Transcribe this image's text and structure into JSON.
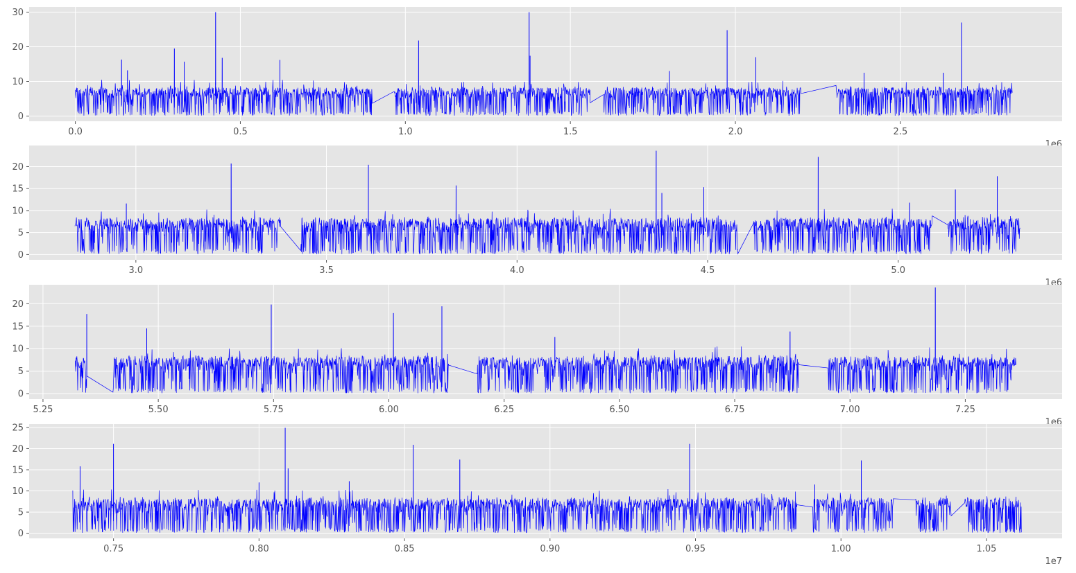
{
  "figure": {
    "background": "#ffffff",
    "plot_background": "#e5e5e5",
    "grid_color": "#ffffff",
    "line_color": "#0000ff",
    "tick_label_color": "#555555"
  },
  "chart_data": [
    {
      "type": "line",
      "title": "",
      "xlabel": "",
      "ylabel": "",
      "grid": true,
      "xlim": [
        -140000,
        2990000
      ],
      "ylim": [
        -1.5,
        31.5
      ],
      "x_ticks": [
        0,
        500000,
        1000000,
        1500000,
        2000000,
        2500000
      ],
      "x_tick_labels": [
        "0.0",
        "0.5",
        "1.0",
        "1.5",
        "2.0",
        "2.5"
      ],
      "y_ticks": [
        0,
        10,
        20,
        30
      ],
      "y_tick_labels": [
        "0",
        "10",
        "20",
        "30"
      ],
      "x_offset_label": "1e6",
      "x_range": [
        0,
        2840000
      ],
      "spikes": [
        {
          "x": 140000,
          "y": 16.3
        },
        {
          "x": 158000,
          "y": 13.2
        },
        {
          "x": 300000,
          "y": 19.5
        },
        {
          "x": 330000,
          "y": 15.7
        },
        {
          "x": 425000,
          "y": 30
        },
        {
          "x": 445000,
          "y": 16.8
        },
        {
          "x": 620000,
          "y": 16.2
        },
        {
          "x": 1040000,
          "y": 21.8
        },
        {
          "x": 1375000,
          "y": 30
        },
        {
          "x": 1378000,
          "y": 17.4
        },
        {
          "x": 1800000,
          "y": 13.0
        },
        {
          "x": 1975000,
          "y": 24.8
        },
        {
          "x": 2062000,
          "y": 17.0
        },
        {
          "x": 2390000,
          "y": 12.5
        },
        {
          "x": 2630000,
          "y": 12.5
        },
        {
          "x": 2685000,
          "y": 27.0
        }
      ],
      "gaps": [
        [
          900000,
          960000
        ],
        [
          1560000,
          1600000
        ],
        [
          2200000,
          2300000
        ]
      ],
      "series": [
        {
          "values_summary": "noisy signal mostly between 0 and 8 with sparse spikes"
        }
      ]
    },
    {
      "type": "line",
      "title": "",
      "xlabel": "",
      "ylabel": "",
      "grid": true,
      "xlim": [
        2720000,
        5430000
      ],
      "ylim": [
        -1.2,
        24.8
      ],
      "x_ticks": [
        3000000,
        3500000,
        4000000,
        4500000,
        5000000
      ],
      "x_tick_labels": [
        "3.0",
        "3.5",
        "4.0",
        "4.5",
        "5.0"
      ],
      "y_ticks": [
        0,
        5,
        10,
        15,
        20
      ],
      "y_tick_labels": [
        "0",
        "5",
        "10",
        "15",
        "20"
      ],
      "x_offset_label": "1e6",
      "x_range": [
        2840000,
        5320000
      ],
      "spikes": [
        {
          "x": 2975000,
          "y": 11.6
        },
        {
          "x": 3250000,
          "y": 20.7
        },
        {
          "x": 3610000,
          "y": 20.4
        },
        {
          "x": 3840000,
          "y": 15.7
        },
        {
          "x": 4365000,
          "y": 23.6
        },
        {
          "x": 4380000,
          "y": 14.0
        },
        {
          "x": 4490000,
          "y": 15.3
        },
        {
          "x": 4790000,
          "y": 22.2
        },
        {
          "x": 5030000,
          "y": 11.8
        },
        {
          "x": 5150000,
          "y": 14.8
        },
        {
          "x": 5260000,
          "y": 17.8
        }
      ],
      "gaps": [
        [
          3380000,
          3430000
        ],
        [
          4580000,
          4620000
        ],
        [
          5090000,
          5130000
        ]
      ],
      "series": [
        {
          "values_summary": "noisy signal mostly between 0 and 8 with sparse spikes"
        }
      ]
    },
    {
      "type": "line",
      "title": "",
      "xlabel": "",
      "ylabel": "",
      "grid": true,
      "xlim": [
        5220000,
        7460000
      ],
      "ylim": [
        -1.2,
        24.2
      ],
      "x_ticks": [
        5250000,
        5500000,
        5750000,
        6000000,
        6250000,
        6500000,
        6750000,
        7000000,
        7250000
      ],
      "x_tick_labels": [
        "5.25",
        "5.50",
        "5.75",
        "6.00",
        "6.25",
        "6.50",
        "6.75",
        "7.00",
        "7.25"
      ],
      "y_ticks": [
        0,
        5,
        10,
        15,
        20
      ],
      "y_tick_labels": [
        "0",
        "5",
        "10",
        "15",
        "20"
      ],
      "x_offset_label": "1e6",
      "x_range": [
        5320000,
        7360000
      ],
      "spikes": [
        {
          "x": 5345000,
          "y": 17.7
        },
        {
          "x": 5475000,
          "y": 14.5
        },
        {
          "x": 5745000,
          "y": 19.8
        },
        {
          "x": 6010000,
          "y": 17.9
        },
        {
          "x": 6115000,
          "y": 19.4
        },
        {
          "x": 6360000,
          "y": 12.6
        },
        {
          "x": 6870000,
          "y": 13.8
        },
        {
          "x": 7185000,
          "y": 23.6
        }
      ],
      "gaps": [
        [
          5345000,
          5400000
        ],
        [
          6130000,
          6190000
        ],
        [
          6890000,
          6950000
        ]
      ],
      "series": [
        {
          "values_summary": "noisy signal mostly between 0 and 8 with sparse spikes"
        }
      ]
    },
    {
      "type": "line",
      "title": "",
      "xlabel": "",
      "ylabel": "",
      "grid": true,
      "xlim": [
        7210000,
        10760000
      ],
      "ylim": [
        -1.2,
        25.8
      ],
      "x_ticks": [
        7500000,
        8000000,
        8500000,
        9000000,
        9500000,
        10000000,
        10500000
      ],
      "x_tick_labels": [
        "0.75",
        "0.80",
        "0.85",
        "0.90",
        "0.95",
        "1.00",
        "1.05"
      ],
      "y_ticks": [
        0,
        5,
        10,
        15,
        20,
        25
      ],
      "y_tick_labels": [
        "0",
        "5",
        "10",
        "15",
        "20",
        "25"
      ],
      "x_offset_label": "1e7",
      "x_range": [
        7360000,
        10620000
      ],
      "spikes": [
        {
          "x": 7385000,
          "y": 15.8
        },
        {
          "x": 7500000,
          "y": 21.1
        },
        {
          "x": 8000000,
          "y": 12.0
        },
        {
          "x": 8090000,
          "y": 24.9
        },
        {
          "x": 8100000,
          "y": 15.3
        },
        {
          "x": 8310000,
          "y": 12.3
        },
        {
          "x": 8530000,
          "y": 20.9
        },
        {
          "x": 8690000,
          "y": 17.4
        },
        {
          "x": 9480000,
          "y": 21.1
        },
        {
          "x": 9910000,
          "y": 11.5
        },
        {
          "x": 10070000,
          "y": 17.2
        }
      ],
      "gaps": [
        [
          9850000,
          9900000
        ],
        [
          10180000,
          10250000
        ],
        [
          10380000,
          10420000
        ]
      ],
      "series": [
        {
          "values_summary": "noisy signal mostly between 0 and 8 with sparse spikes"
        }
      ]
    }
  ]
}
